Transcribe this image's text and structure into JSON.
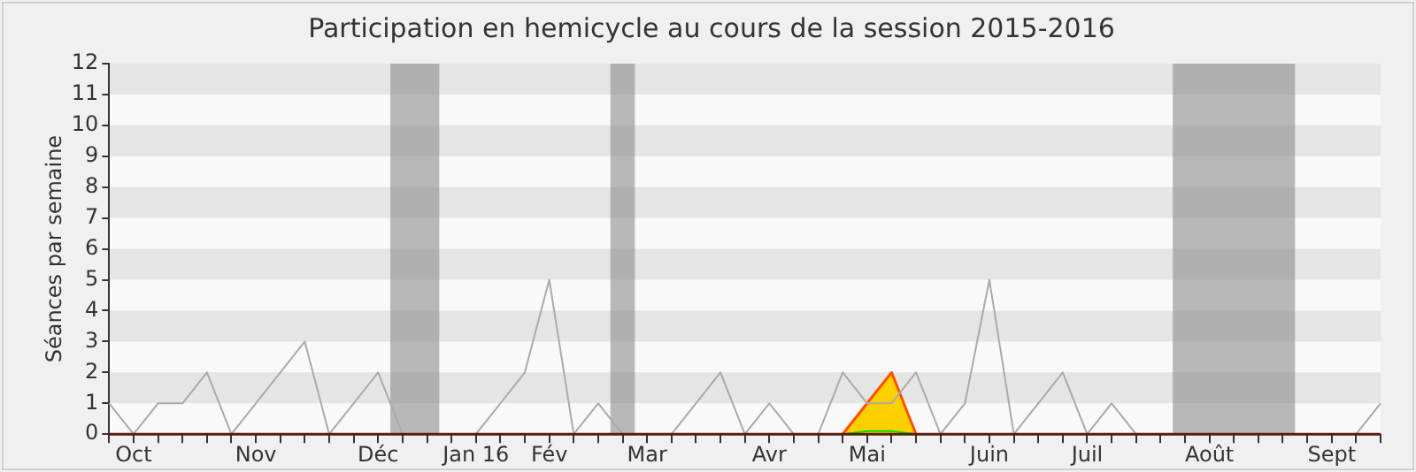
{
  "chart_data": {
    "type": "line",
    "title": "Participation en hemicycle au cours de la session 2015-2016",
    "ylabel": "Séances par semaine",
    "categories": [
      null,
      "Oct",
      null,
      null,
      null,
      null,
      "Nov",
      null,
      null,
      null,
      null,
      "Déc",
      null,
      null,
      null,
      "Jan 16",
      null,
      null,
      "Fév",
      null,
      null,
      null,
      "Mar",
      null,
      null,
      null,
      null,
      "Avr",
      null,
      null,
      null,
      "Mai",
      null,
      null,
      null,
      null,
      "Juin",
      null,
      null,
      null,
      "Juil",
      null,
      null,
      null,
      null,
      "Août",
      null,
      null,
      null,
      null,
      "Sept",
      null,
      null
    ],
    "ylim": [
      0,
      12
    ],
    "yticks": [
      0,
      1,
      2,
      3,
      4,
      5,
      6,
      7,
      8,
      9,
      10,
      11,
      12
    ],
    "series": [
      {
        "type": "line",
        "color": "#aaaaaa",
        "values": [
          1,
          0,
          1,
          1,
          2,
          0,
          1,
          2,
          3,
          0,
          1,
          2,
          0,
          0,
          0,
          0,
          1,
          2,
          5,
          0,
          1,
          0,
          0,
          0,
          1,
          2,
          0,
          1,
          0,
          0,
          2,
          1,
          1,
          2,
          0,
          1,
          5,
          0,
          1,
          2,
          0,
          1,
          0,
          0,
          0,
          0,
          0,
          0,
          0,
          0,
          0,
          0,
          1
        ]
      },
      {
        "type": "area",
        "color": "#ffd000",
        "values": [
          null,
          null,
          null,
          null,
          null,
          null,
          null,
          null,
          null,
          null,
          null,
          null,
          null,
          null,
          null,
          null,
          null,
          null,
          null,
          null,
          null,
          null,
          null,
          null,
          null,
          null,
          null,
          null,
          null,
          null,
          0,
          1,
          2,
          0,
          null,
          null,
          null,
          null,
          null,
          null,
          null,
          null,
          null,
          null,
          null,
          null,
          null,
          null,
          null,
          null,
          null,
          null,
          null
        ]
      },
      {
        "type": "line",
        "color": "#00e000",
        "values": [
          null,
          null,
          null,
          null,
          null,
          null,
          null,
          null,
          null,
          null,
          null,
          null,
          null,
          null,
          null,
          null,
          null,
          null,
          null,
          null,
          null,
          null,
          null,
          null,
          null,
          null,
          null,
          null,
          null,
          null,
          0,
          0.1,
          0.1,
          0,
          null,
          null,
          null,
          null,
          null,
          null,
          null,
          null,
          null,
          null,
          null,
          null,
          null,
          null,
          null,
          null,
          null,
          null,
          null
        ]
      }
    ],
    "legend": false,
    "marker": "none",
    "line_style": "solid"
  }
}
